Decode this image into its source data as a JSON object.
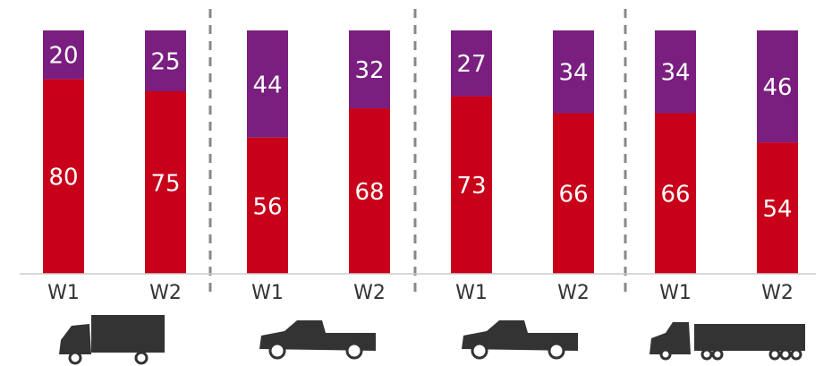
{
  "chart_data": {
    "type": "stacked_bar",
    "categories": [
      "W1",
      "W2",
      "W1",
      "W2",
      "W1",
      "W2",
      "W1",
      "W2"
    ],
    "series": [
      {
        "color": "#c8001a",
        "values": [
          80,
          75,
          56,
          68,
          73,
          66,
          66,
          54
        ]
      },
      {
        "color": "#7a1f7f",
        "values": [
          20,
          25,
          44,
          32,
          27,
          34,
          34,
          46
        ]
      }
    ],
    "ylim": [
      0,
      100
    ]
  }
}
